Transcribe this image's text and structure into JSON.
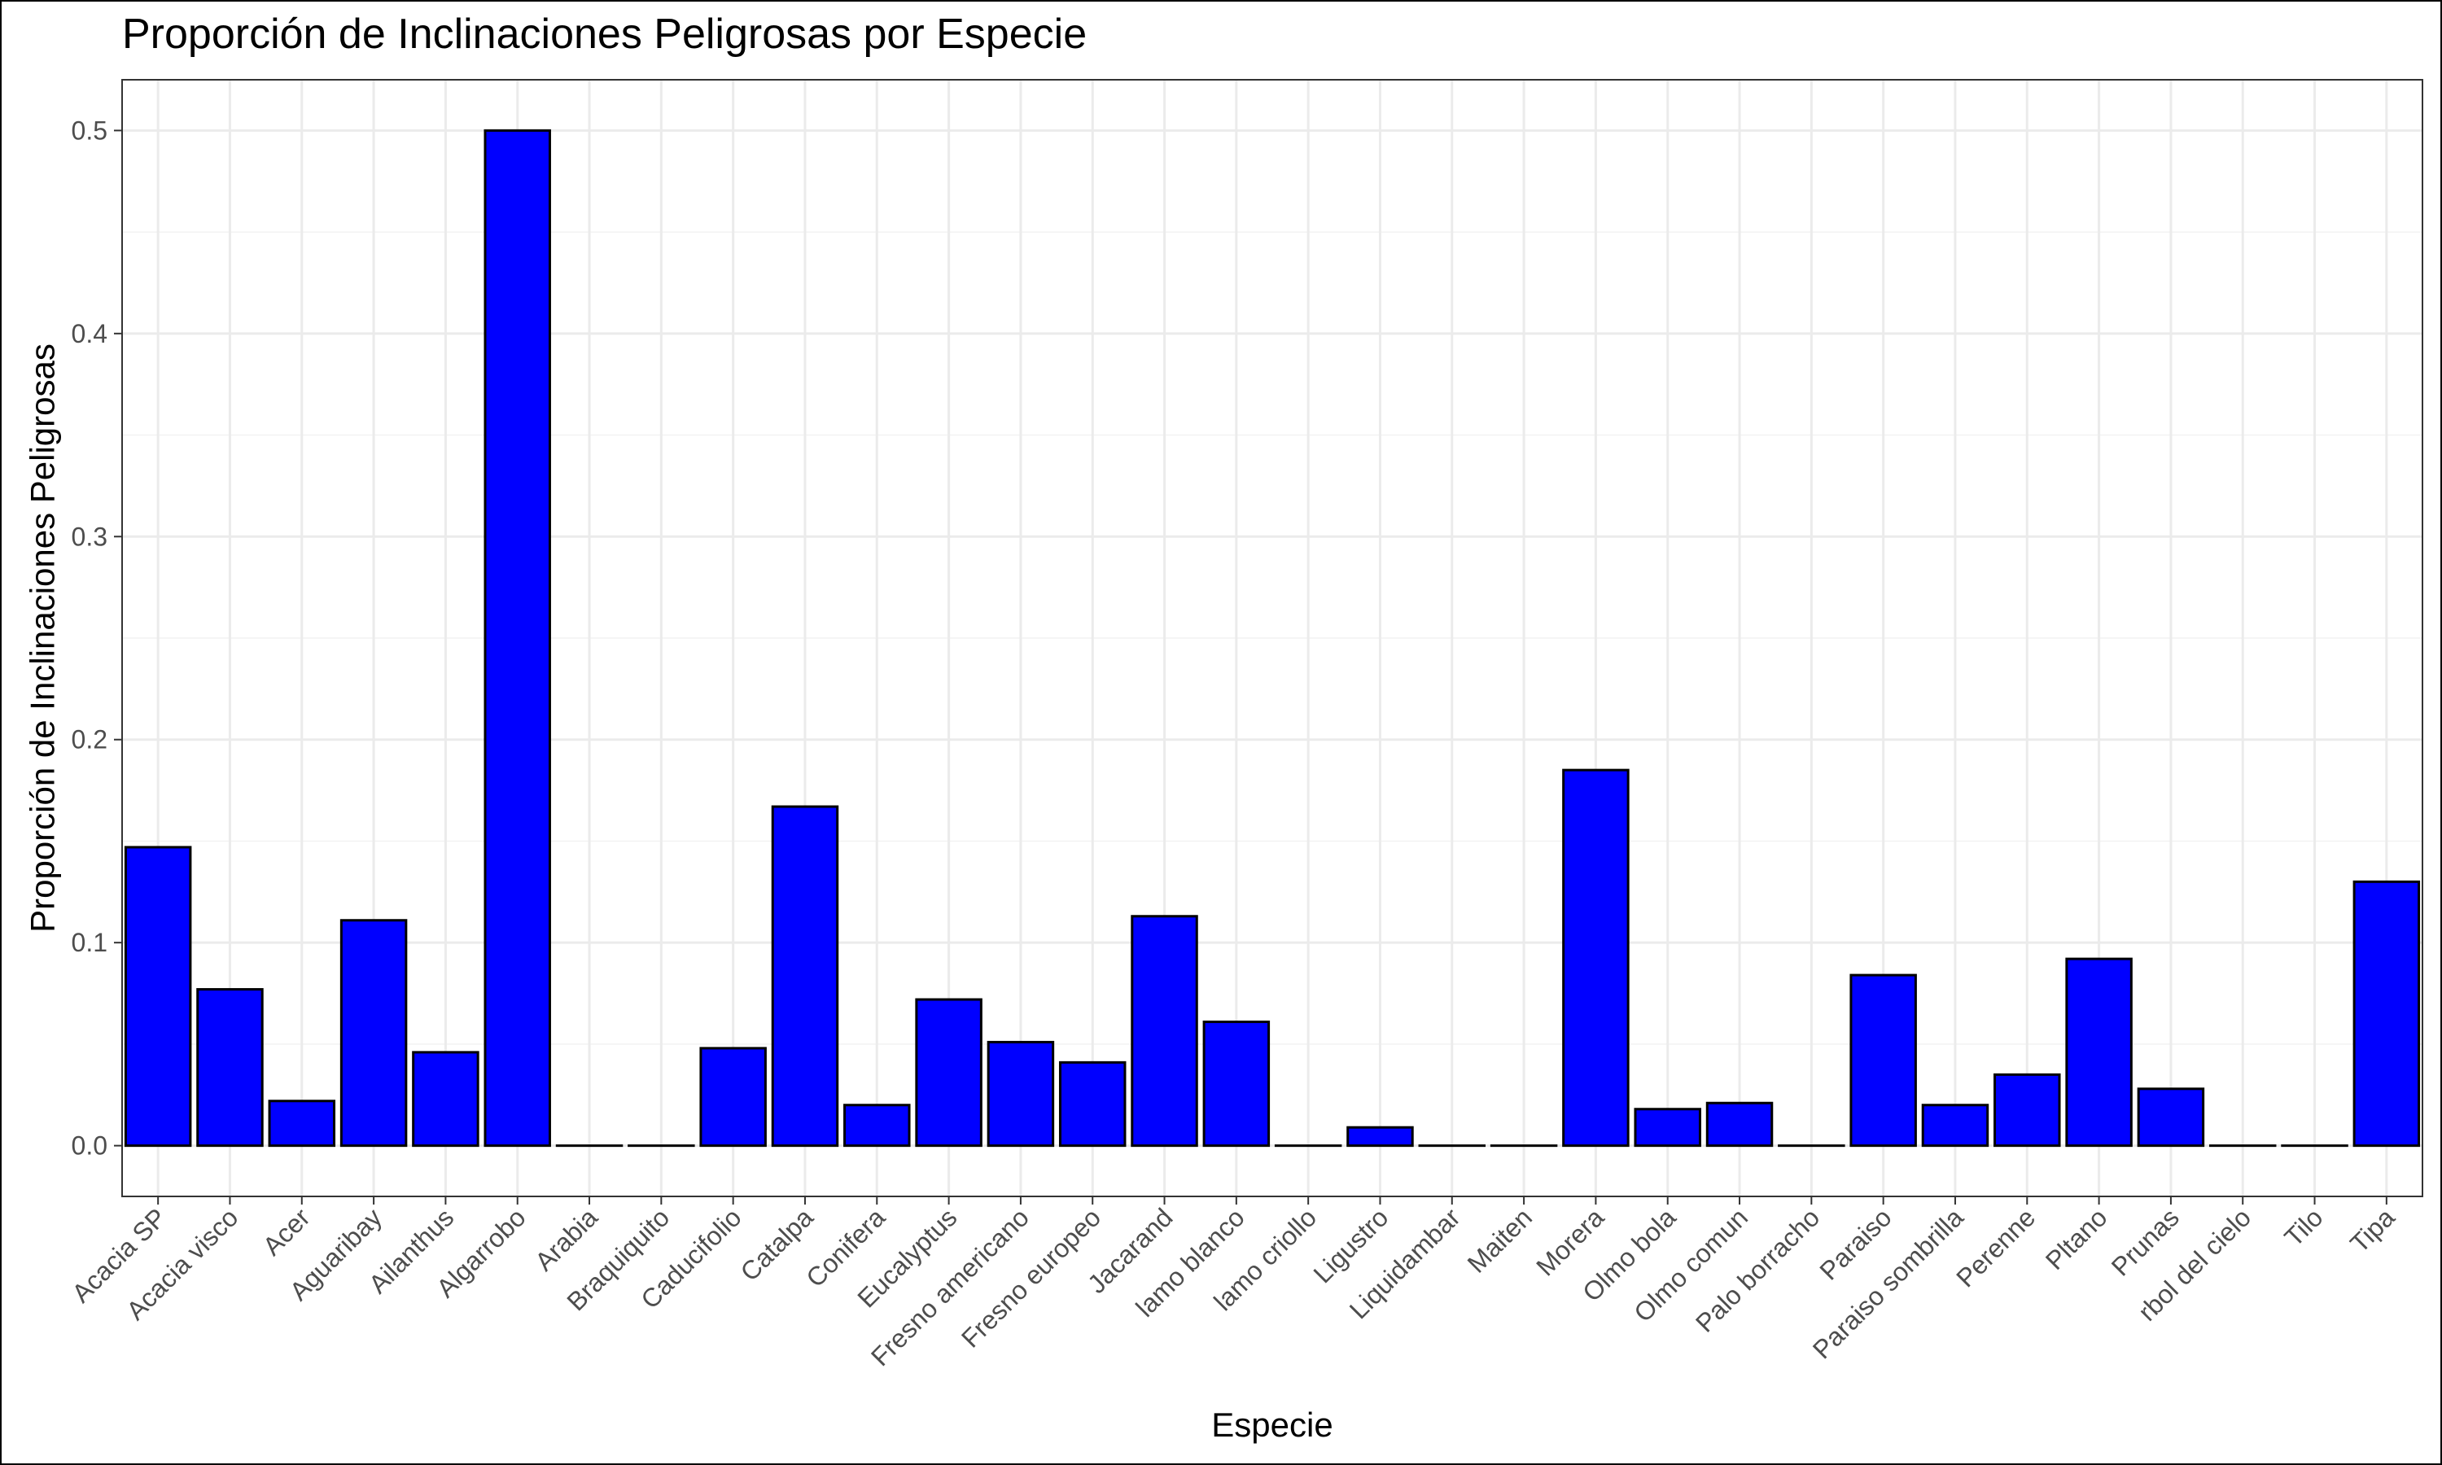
{
  "chart_data": {
    "type": "bar",
    "title": "Proporción de Inclinaciones Peligrosas por Especie",
    "xlabel": "Especie",
    "ylabel": "Proporción de Inclinaciones Peligrosas",
    "ylim": [
      -0.025,
      0.525
    ],
    "y_ticks": [
      0.0,
      0.1,
      0.2,
      0.3,
      0.4,
      0.5
    ],
    "y_tick_labels": [
      "0.0",
      "0.1",
      "0.2",
      "0.3",
      "0.4",
      "0.5"
    ],
    "grid": true,
    "bar_color": "#0000ff",
    "bar_outline": "#000000",
    "categories": [
      "Acacia SP",
      "Acacia visco",
      "Acer",
      "Aguaribay",
      "Ailanthus",
      "Algarrobo",
      "Arabia",
      "Braquiquito",
      "Caducifolio",
      "Catalpa",
      "Conifera",
      "Eucalyptus",
      "Fresno americano",
      "Fresno europeo",
      "Jacarand",
      "lamo blanco",
      "lamo criollo",
      "Ligustro",
      "Liquidambar",
      "Maiten",
      "Morera",
      "Olmo bola",
      "Olmo comun",
      "Palo borracho",
      "Paraiso",
      "Paraiso sombrilla",
      "Perenne",
      "Pltano",
      "Prunas",
      "rbol del cielo",
      "Tilo",
      "Tipa"
    ],
    "values": [
      0.147,
      0.077,
      0.022,
      0.111,
      0.046,
      0.5,
      0.0,
      0.0,
      0.048,
      0.167,
      0.02,
      0.072,
      0.051,
      0.041,
      0.113,
      0.061,
      0.0,
      0.009,
      0.0,
      0.0,
      0.185,
      0.018,
      0.021,
      0.0,
      0.084,
      0.02,
      0.035,
      0.092,
      0.028,
      0.0,
      0.0,
      0.13
    ]
  }
}
